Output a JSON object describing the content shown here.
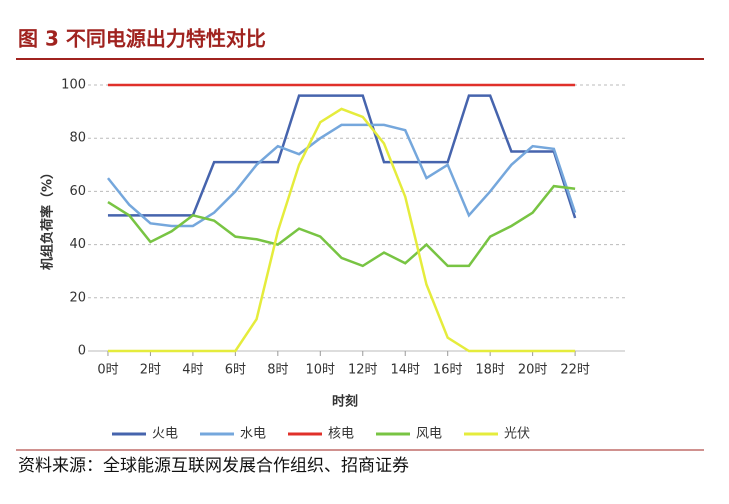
{
  "chart_data": {
    "type": "line",
    "title": "图 3 不同电源出力特性对比",
    "source": "资料来源：全球能源互联网发展合作组织、招商证券",
    "x_label": "时刻",
    "y_label": "机组负荷率（%）",
    "x": [
      0,
      1,
      2,
      3,
      4,
      5,
      6,
      7,
      8,
      9,
      10,
      11,
      12,
      13,
      14,
      15,
      16,
      17,
      18,
      19,
      20,
      21,
      22
    ],
    "xlim": [
      -0.94,
      24.35
    ],
    "xticks": [
      {
        "value": 0,
        "label": "0时"
      },
      {
        "value": 2,
        "label": "2时"
      },
      {
        "value": 4,
        "label": "4时"
      },
      {
        "value": 6,
        "label": "6时"
      },
      {
        "value": 8,
        "label": "8时"
      },
      {
        "value": 10,
        "label": "10时"
      },
      {
        "value": 12,
        "label": "12时"
      },
      {
        "value": 14,
        "label": "14时"
      },
      {
        "value": 16,
        "label": "16时"
      },
      {
        "value": 18,
        "label": "18时"
      },
      {
        "value": 20,
        "label": "20时"
      },
      {
        "value": 22,
        "label": "22时"
      }
    ],
    "ylim": [
      0,
      100
    ],
    "yticks": [
      0,
      20,
      40,
      60,
      80,
      100
    ],
    "grid": true,
    "series": [
      {
        "name": "火电",
        "color": "#4664ad",
        "values": [
          51,
          51,
          51,
          51,
          51,
          71,
          71,
          71,
          71,
          96,
          96,
          96,
          96,
          71,
          71,
          71,
          71,
          96,
          96,
          75,
          75,
          75,
          50
        ]
      },
      {
        "name": "水电",
        "color": "#75a7dc",
        "values": [
          65,
          55,
          48,
          47,
          47,
          52,
          60,
          70,
          77,
          74,
          80,
          85,
          85,
          85,
          83,
          65,
          70,
          51,
          60,
          70,
          77,
          76,
          52
        ]
      },
      {
        "name": "核电",
        "color": "#e0302a",
        "values": [
          100,
          100,
          100,
          100,
          100,
          100,
          100,
          100,
          100,
          100,
          100,
          100,
          100,
          100,
          100,
          100,
          100,
          100,
          100,
          100,
          100,
          100,
          100
        ]
      },
      {
        "name": "风电",
        "color": "#78c443",
        "values": [
          56,
          51,
          41,
          45,
          51,
          49,
          43,
          42,
          40,
          46,
          43,
          35,
          32,
          37,
          33,
          40,
          32,
          32,
          43,
          47,
          52,
          62,
          61
        ]
      },
      {
        "name": "光伏",
        "color": "#e5ec3c",
        "values": [
          0,
          0,
          0,
          0,
          0,
          0,
          0,
          12,
          45,
          70,
          86,
          91,
          88,
          78,
          58,
          25,
          5,
          0,
          0,
          0,
          0,
          0,
          0
        ]
      }
    ]
  }
}
